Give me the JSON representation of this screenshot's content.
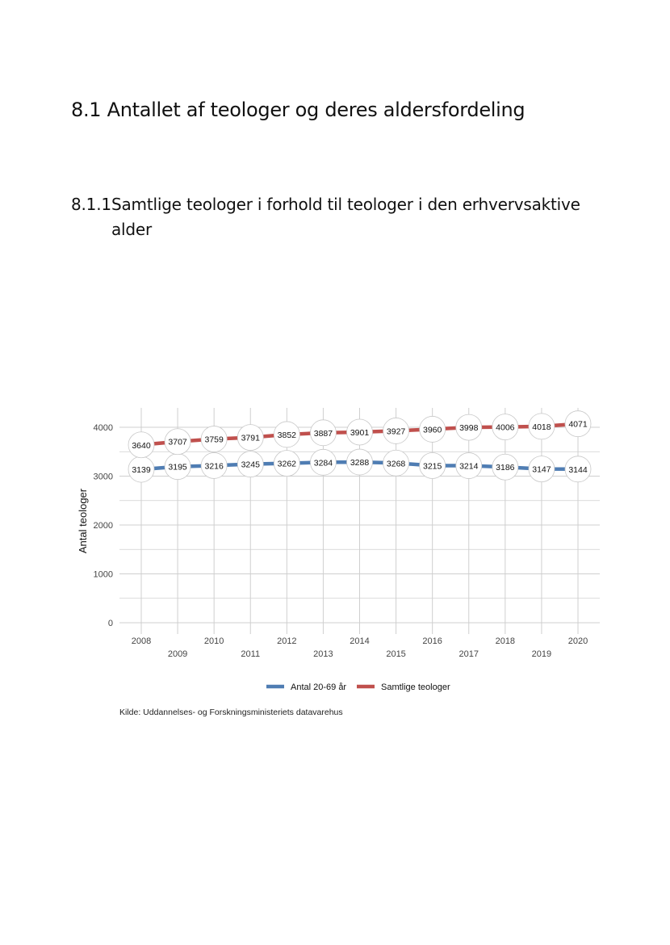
{
  "doc": {
    "h1": "8.1 Antallet af teologer og deres aldersfordeling",
    "h2_number": "8.1.1",
    "h2_line1": "Samtlige teologer i forhold til teologer i den erhvervsaktive",
    "h2_line2": "alder",
    "source": "Kilde: Uddannelses- og Forskningsministeriets datavarehus"
  },
  "chart_data": {
    "type": "line",
    "title": "",
    "xlabel": "",
    "ylabel": "Antal teologer",
    "x": [
      "2008",
      "2009",
      "2010",
      "2011",
      "2012",
      "2013",
      "2014",
      "2015",
      "2016",
      "2017",
      "2018",
      "2019",
      "2020"
    ],
    "ylim": [
      0,
      4250
    ],
    "yticks": [
      0,
      1000,
      2000,
      3000,
      4000
    ],
    "grid": true,
    "legend_position": "bottom",
    "series": [
      {
        "name": "Antal 20-69 år",
        "color": "#4f7db3",
        "values": [
          3139,
          3195,
          3216,
          3245,
          3262,
          3284,
          3288,
          3268,
          3215,
          3214,
          3186,
          3147,
          3144
        ]
      },
      {
        "name": "Samtlige teologer",
        "color": "#c0504d",
        "values": [
          3640,
          3707,
          3759,
          3791,
          3852,
          3887,
          3901,
          3927,
          3960,
          3998,
          4006,
          4018,
          4071
        ]
      }
    ]
  }
}
